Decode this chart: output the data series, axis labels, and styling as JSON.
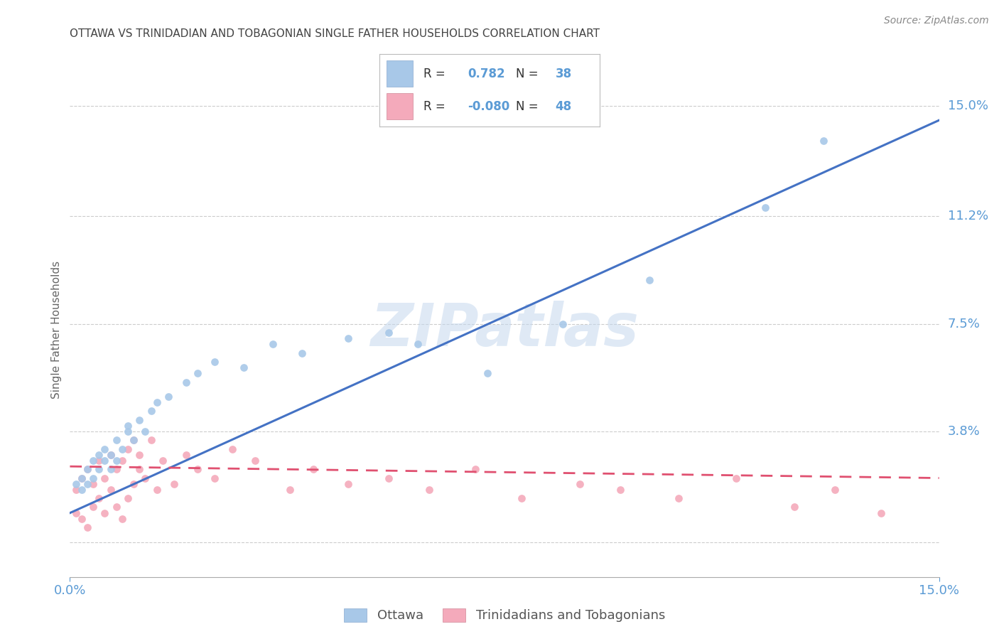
{
  "title": "OTTAWA VS TRINIDADIAN AND TOBAGONIAN SINGLE FATHER HOUSEHOLDS CORRELATION CHART",
  "source": "Source: ZipAtlas.com",
  "ylabel": "Single Father Households",
  "ytick_labels": [
    "3.8%",
    "7.5%",
    "11.2%",
    "15.0%"
  ],
  "ytick_values": [
    0.038,
    0.075,
    0.112,
    0.15
  ],
  "xmin": 0.0,
  "xmax": 0.15,
  "ymin": -0.012,
  "ymax": 0.158,
  "blue_R": 0.782,
  "blue_N": 38,
  "pink_R": -0.08,
  "pink_N": 48,
  "blue_color": "#A8C8E8",
  "pink_color": "#F4AABB",
  "blue_line_color": "#4472C4",
  "pink_line_color": "#E05070",
  "legend_label_blue": "Ottawa",
  "legend_label_pink": "Trinidadians and Tobagonians",
  "watermark": "ZIPatlas",
  "background_color": "#FFFFFF",
  "grid_color": "#CCCCCC",
  "title_color": "#444444",
  "axis_label_color": "#5B9BD5",
  "legend_text_color": "#5B9BD5",
  "blue_scatter_x": [
    0.001,
    0.002,
    0.002,
    0.003,
    0.003,
    0.004,
    0.004,
    0.005,
    0.005,
    0.006,
    0.006,
    0.007,
    0.007,
    0.008,
    0.008,
    0.009,
    0.01,
    0.01,
    0.011,
    0.012,
    0.013,
    0.014,
    0.015,
    0.017,
    0.02,
    0.022,
    0.025,
    0.03,
    0.035,
    0.04,
    0.048,
    0.055,
    0.06,
    0.072,
    0.085,
    0.1,
    0.12,
    0.13
  ],
  "blue_scatter_y": [
    0.02,
    0.022,
    0.018,
    0.025,
    0.02,
    0.028,
    0.022,
    0.03,
    0.025,
    0.028,
    0.032,
    0.025,
    0.03,
    0.035,
    0.028,
    0.032,
    0.038,
    0.04,
    0.035,
    0.042,
    0.038,
    0.045,
    0.048,
    0.05,
    0.055,
    0.058,
    0.062,
    0.06,
    0.068,
    0.065,
    0.07,
    0.072,
    0.068,
    0.058,
    0.075,
    0.09,
    0.115,
    0.138
  ],
  "pink_scatter_x": [
    0.001,
    0.001,
    0.002,
    0.002,
    0.003,
    0.003,
    0.004,
    0.004,
    0.005,
    0.005,
    0.006,
    0.006,
    0.007,
    0.007,
    0.008,
    0.008,
    0.009,
    0.009,
    0.01,
    0.01,
    0.011,
    0.011,
    0.012,
    0.012,
    0.013,
    0.014,
    0.015,
    0.016,
    0.018,
    0.02,
    0.022,
    0.025,
    0.028,
    0.032,
    0.038,
    0.042,
    0.048,
    0.055,
    0.062,
    0.07,
    0.078,
    0.088,
    0.095,
    0.105,
    0.115,
    0.125,
    0.132,
    0.14
  ],
  "pink_scatter_y": [
    0.01,
    0.018,
    0.008,
    0.022,
    0.005,
    0.025,
    0.012,
    0.02,
    0.015,
    0.028,
    0.01,
    0.022,
    0.018,
    0.03,
    0.012,
    0.025,
    0.008,
    0.028,
    0.015,
    0.032,
    0.02,
    0.035,
    0.025,
    0.03,
    0.022,
    0.035,
    0.018,
    0.028,
    0.02,
    0.03,
    0.025,
    0.022,
    0.032,
    0.028,
    0.018,
    0.025,
    0.02,
    0.022,
    0.018,
    0.025,
    0.015,
    0.02,
    0.018,
    0.015,
    0.022,
    0.012,
    0.018,
    0.01
  ],
  "blue_trend_x0": 0.0,
  "blue_trend_y0": 0.01,
  "blue_trend_x1": 0.15,
  "blue_trend_y1": 0.145,
  "pink_trend_x0": 0.0,
  "pink_trend_y0": 0.026,
  "pink_trend_x1": 0.15,
  "pink_trend_y1": 0.022
}
